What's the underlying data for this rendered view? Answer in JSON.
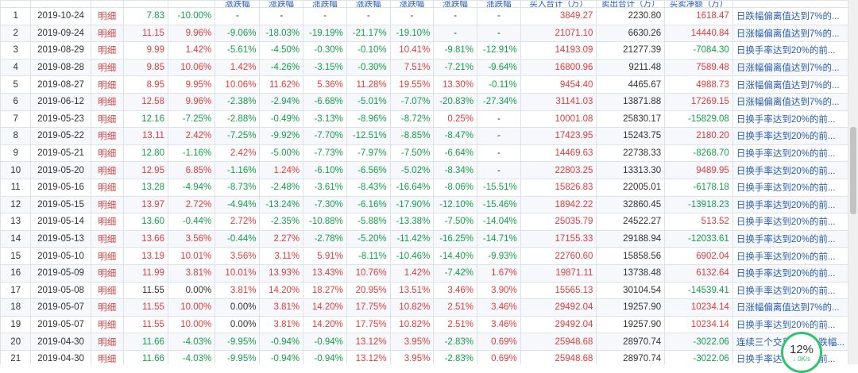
{
  "headers": [
    "",
    "",
    "",
    "",
    "",
    "涨跌幅",
    "涨跌幅",
    "涨跌幅",
    "涨跌幅",
    "涨跌幅",
    "涨跌幅",
    "涨跌幅",
    "买入合计（万）",
    "卖出合计（万）",
    "买卖净额（万）",
    ""
  ],
  "rows": [
    {
      "idx": "1",
      "date": "2019-10-24",
      "link": "明细",
      "price": "7.83",
      "chg": "-10.00%",
      "d": [
        "-",
        "-",
        "-",
        "-",
        "-",
        "-",
        "-"
      ],
      "buy": "3849.27",
      "sell": "2230.80",
      "net": "1618.47",
      "reason": "日跌幅偏离值达到7%的..."
    },
    {
      "idx": "2",
      "date": "2019-09-24",
      "link": "明细",
      "price": "11.15",
      "chg": "9.96%",
      "d": [
        "-9.06%",
        "-18.03%",
        "-19.19%",
        "-21.17%",
        "-19.10%",
        "-",
        "-"
      ],
      "buy": "21071.10",
      "sell": "6630.26",
      "net": "14440.84",
      "reason": "日涨幅偏离值达到7%的..."
    },
    {
      "idx": "3",
      "date": "2019-08-29",
      "link": "明细",
      "price": "9.99",
      "chg": "1.42%",
      "d": [
        "-5.61%",
        "-4.50%",
        "-0.30%",
        "-0.10%",
        "10.41%",
        "-9.81%",
        "-12.91%"
      ],
      "buy": "14193.09",
      "sell": "21277.39",
      "net": "-7084.30",
      "reason": "日换手率达到20%的前..."
    },
    {
      "idx": "4",
      "date": "2019-08-28",
      "link": "明细",
      "price": "9.85",
      "chg": "10.06%",
      "d": [
        "1.42%",
        "-4.26%",
        "-3.15%",
        "-0.30%",
        "7.51%",
        "-7.21%",
        "-9.64%"
      ],
      "buy": "16800.96",
      "sell": "9211.48",
      "net": "7589.48",
      "reason": "日涨幅偏离值达到7%的..."
    },
    {
      "idx": "5",
      "date": "2019-08-27",
      "link": "明细",
      "price": "8.95",
      "chg": "9.95%",
      "d": [
        "10.06%",
        "11.62%",
        "5.36%",
        "11.28%",
        "19.55%",
        "13.30%",
        "-0.11%"
      ],
      "buy": "9454.40",
      "sell": "4465.67",
      "net": "4988.73",
      "reason": "日涨幅偏离值达到7%的..."
    },
    {
      "idx": "6",
      "date": "2019-06-12",
      "link": "明细",
      "price": "12.58",
      "chg": "9.96%",
      "d": [
        "-2.38%",
        "-2.94%",
        "-6.68%",
        "-5.01%",
        "-7.07%",
        "-20.83%",
        "-27.34%"
      ],
      "buy": "31141.03",
      "sell": "13871.88",
      "net": "17269.15",
      "reason": "日涨幅偏离值达到7%的..."
    },
    {
      "idx": "7",
      "date": "2019-05-23",
      "link": "明细",
      "price": "12.16",
      "chg": "-7.25%",
      "d": [
        "-2.88%",
        "-0.49%",
        "-3.13%",
        "-8.96%",
        "-8.72%",
        "0.25%",
        "-"
      ],
      "buy": "10001.08",
      "sell": "25830.17",
      "net": "-15829.08",
      "reason": "日换手率达到20%的前..."
    },
    {
      "idx": "8",
      "date": "2019-05-22",
      "link": "明细",
      "price": "13.11",
      "chg": "2.42%",
      "d": [
        "-7.25%",
        "-9.92%",
        "-7.70%",
        "-12.51%",
        "-8.85%",
        "-8.47%",
        "-"
      ],
      "buy": "17423.95",
      "sell": "15243.75",
      "net": "2180.20",
      "reason": "日换手率达到20%的前..."
    },
    {
      "idx": "9",
      "date": "2019-05-21",
      "link": "明细",
      "price": "12.80",
      "chg": "-1.16%",
      "d": [
        "2.42%",
        "-5.00%",
        "-7.73%",
        "-7.97%",
        "-7.50%",
        "-6.64%",
        "-"
      ],
      "buy": "14469.63",
      "sell": "22738.33",
      "net": "-8268.70",
      "reason": "日换手率达到20%的前..."
    },
    {
      "idx": "10",
      "date": "2019-05-20",
      "link": "明细",
      "price": "12.95",
      "chg": "6.85%",
      "d": [
        "-1.16%",
        "1.24%",
        "-6.10%",
        "-6.56%",
        "-5.02%",
        "-8.34%",
        "-"
      ],
      "buy": "22803.25",
      "sell": "13313.30",
      "net": "9489.95",
      "reason": "日换手率达到20%的前..."
    },
    {
      "idx": "11",
      "date": "2019-05-16",
      "link": "明细",
      "price": "13.28",
      "chg": "-4.94%",
      "d": [
        "-8.73%",
        "-2.48%",
        "-3.61%",
        "-8.43%",
        "-16.64%",
        "-8.06%",
        "-15.51%"
      ],
      "buy": "15826.83",
      "sell": "22005.01",
      "net": "-6178.18",
      "reason": "日换手率达到20%的前..."
    },
    {
      "idx": "12",
      "date": "2019-05-15",
      "link": "明细",
      "price": "13.97",
      "chg": "2.72%",
      "d": [
        "-4.94%",
        "-13.24%",
        "-7.30%",
        "-6.16%",
        "-17.90%",
        "-12.10%",
        "-15.46%"
      ],
      "buy": "18942.22",
      "sell": "32860.45",
      "net": "-13918.23",
      "reason": "日换手率达到20%的前..."
    },
    {
      "idx": "13",
      "date": "2019-05-14",
      "link": "明细",
      "price": "13.60",
      "chg": "-0.44%",
      "d": [
        "2.72%",
        "-2.35%",
        "-10.88%",
        "-5.88%",
        "-13.38%",
        "-7.50%",
        "-14.04%"
      ],
      "buy": "25035.79",
      "sell": "24522.27",
      "net": "513.52",
      "reason": "日换手率达到20%的前..."
    },
    {
      "idx": "14",
      "date": "2019-05-13",
      "link": "明细",
      "price": "13.66",
      "chg": "3.56%",
      "d": [
        "-0.44%",
        "2.27%",
        "-2.78%",
        "-5.20%",
        "-11.42%",
        "-16.25%",
        "-14.71%"
      ],
      "buy": "17155.33",
      "sell": "29188.94",
      "net": "-12033.61",
      "reason": "日换手率达到20%的前..."
    },
    {
      "idx": "15",
      "date": "2019-05-10",
      "link": "明细",
      "price": "13.19",
      "chg": "10.01%",
      "d": [
        "3.56%",
        "3.11%",
        "5.91%",
        "-8.11%",
        "-10.46%",
        "-14.40%",
        "-9.93%"
      ],
      "buy": "22760.60",
      "sell": "15858.56",
      "net": "6902.04",
      "reason": "日换手率达到20%的前..."
    },
    {
      "idx": "16",
      "date": "2019-05-09",
      "link": "明细",
      "price": "11.99",
      "chg": "3.81%",
      "d": [
        "10.01%",
        "13.93%",
        "13.43%",
        "10.76%",
        "1.42%",
        "-7.42%",
        "1.67%"
      ],
      "buy": "19871.11",
      "sell": "13738.48",
      "net": "6132.64",
      "reason": "日换手率达到20%的前..."
    },
    {
      "idx": "17",
      "date": "2019-05-08",
      "link": "明细",
      "price": "11.55",
      "chg": "0.00%",
      "d": [
        "3.81%",
        "14.20%",
        "18.27%",
        "20.95%",
        "13.51%",
        "3.46%",
        "3.90%"
      ],
      "buy": "15565.13",
      "sell": "30104.54",
      "net": "-14539.41",
      "reason": "日换手率达到20%的前..."
    },
    {
      "idx": "18",
      "date": "2019-05-07",
      "link": "明细",
      "price": "11.55",
      "chg": "10.00%",
      "d": [
        "0.00%",
        "3.81%",
        "14.20%",
        "17.75%",
        "10.82%",
        "2.51%",
        "3.46%"
      ],
      "buy": "29492.04",
      "sell": "19257.90",
      "net": "10234.14",
      "reason": "日涨幅偏离值达到7%的..."
    },
    {
      "idx": "19",
      "date": "2019-05-07",
      "link": "明细",
      "price": "11.55",
      "chg": "10.00%",
      "d": [
        "0.00%",
        "3.81%",
        "14.20%",
        "17.75%",
        "10.82%",
        "2.51%",
        "3.46%"
      ],
      "buy": "29492.04",
      "sell": "19257.90",
      "net": "10234.14",
      "reason": "日换手率达到20%的前..."
    },
    {
      "idx": "20",
      "date": "2019-04-30",
      "link": "明细",
      "price": "11.66",
      "chg": "-4.03%",
      "d": [
        "-9.95%",
        "-0.94%",
        "-0.94%",
        "13.12%",
        "3.95%",
        "-2.83%",
        "0.69%"
      ],
      "buy": "25948.68",
      "sell": "28970.74",
      "net": "-3022.06",
      "reason": "连续三个交易日内，跌幅..."
    },
    {
      "idx": "21",
      "date": "2019-04-30",
      "link": "明细",
      "price": "11.66",
      "chg": "-4.03%",
      "d": [
        "-9.95%",
        "-0.94%",
        "-0.94%",
        "13.12%",
        "3.95%",
        "-2.83%",
        "0.69%"
      ],
      "buy": "25948.68",
      "sell": "28970.74",
      "net": "-3022.06",
      "reason": "日换手率达到20%的前..."
    }
  ],
  "badge": {
    "percent": "12%",
    "speed": "↓ 0K/s"
  }
}
